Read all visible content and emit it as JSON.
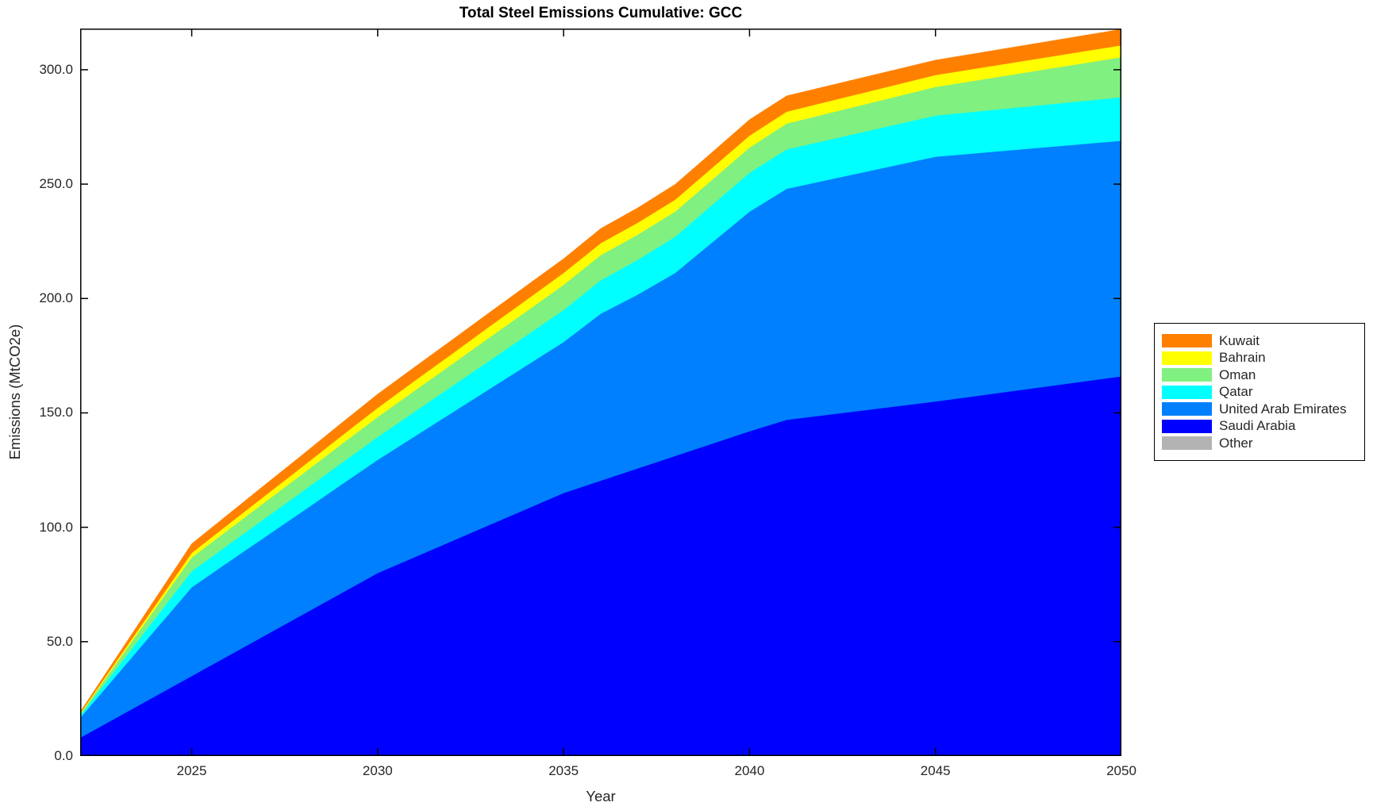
{
  "chart_data": {
    "type": "area",
    "stacked": true,
    "title": "Total Steel Emissions Cumulative: GCC",
    "xlabel": "Year",
    "ylabel": "Emissions (MtCO2e)",
    "x": [
      2022,
      2023,
      2024,
      2025,
      2026,
      2027,
      2028,
      2029,
      2030,
      2031,
      2032,
      2033,
      2034,
      2035,
      2036,
      2037,
      2038,
      2039,
      2040,
      2041,
      2042,
      2043,
      2044,
      2045,
      2046,
      2047,
      2048,
      2049,
      2050
    ],
    "xlim": [
      2022,
      2050
    ],
    "ylim": [
      0,
      318
    ],
    "xticks": [
      2025,
      2030,
      2035,
      2040,
      2045,
      2050
    ],
    "yticks": [
      0,
      50,
      100,
      150,
      200,
      250,
      300
    ],
    "grid": false,
    "legend_position": "right-outside",
    "legend_order_top_to_bottom": [
      "Kuwait",
      "Bahrain",
      "Oman",
      "Qatar",
      "United Arab Emirates",
      "Saudi Arabia",
      "Other"
    ],
    "series": [
      {
        "name": "Other",
        "color": "#B3B3B3",
        "values": [
          0,
          0,
          0,
          0,
          0,
          0,
          0,
          0,
          0,
          0,
          0,
          0,
          0,
          0,
          0,
          0,
          0,
          0,
          0,
          0,
          0,
          0,
          0,
          0,
          0,
          0,
          0,
          0,
          0
        ]
      },
      {
        "name": "Saudi Arabia",
        "color": "#0000FF",
        "values": [
          8,
          17,
          26,
          35,
          44,
          53,
          62,
          71,
          80,
          87,
          94,
          101,
          108,
          115,
          120.4,
          125.8,
          131.2,
          136.6,
          142,
          147,
          149,
          151,
          153,
          155,
          157.2,
          159.4,
          161.6,
          163.8,
          166
        ]
      },
      {
        "name": "United Arab Emirates",
        "color": "#0080FF",
        "values": [
          8.7,
          18.7,
          28.8,
          38.8,
          41,
          43.1,
          45.2,
          47.4,
          49.5,
          52.8,
          56.1,
          59.4,
          62.7,
          66,
          73,
          76,
          80,
          88,
          96,
          101,
          102.5,
          104,
          105.5,
          107,
          106.2,
          105.4,
          104.6,
          103.8,
          103
        ]
      },
      {
        "name": "Qatar",
        "color": "#00FFFF",
        "values": [
          1,
          3,
          5,
          7,
          7.6,
          8.2,
          8.8,
          9.4,
          10,
          10.8,
          11.6,
          12.4,
          13.2,
          14,
          14.6,
          15.2,
          15.8,
          16.4,
          17,
          17.2,
          17.4,
          17.6,
          17.8,
          18,
          18.2,
          18.4,
          18.6,
          18.8,
          19
        ]
      },
      {
        "name": "Oman",
        "color": "#80F080",
        "values": [
          0.7,
          2.5,
          4.2,
          6,
          6.5,
          7.1,
          7.6,
          8.2,
          8.7,
          9.2,
          9.6,
          10.1,
          10.5,
          11,
          11,
          11,
          11,
          11,
          11,
          11.3,
          11.6,
          11.9,
          12.2,
          12.5,
          13.5,
          14.5,
          15.5,
          16.5,
          17.5
        ]
      },
      {
        "name": "Bahrain",
        "color": "#FFFF00",
        "values": [
          0.3,
          0.9,
          1.4,
          2,
          2.4,
          2.8,
          3.2,
          3.6,
          4,
          4.3,
          4.5,
          4.8,
          5,
          5.2,
          5.2,
          5.2,
          5.2,
          5.2,
          5.2,
          5.2,
          5.2,
          5.2,
          5.2,
          5.2,
          5.2,
          5.2,
          5.2,
          5.2,
          5.2
        ]
      },
      {
        "name": "Kuwait",
        "color": "#FF8000",
        "values": [
          0.6,
          1.7,
          2.9,
          4,
          4.4,
          4.8,
          5.2,
          5.6,
          6,
          6,
          6.1,
          6.1,
          6.2,
          6.2,
          6.4,
          6.5,
          6.7,
          6.8,
          7,
          6.9,
          6.8,
          6.7,
          6.6,
          6.5,
          6.6,
          6.7,
          6.8,
          6.9,
          7
        ]
      }
    ],
    "ytick_labels": [
      "0.0",
      "50.0",
      "100.0",
      "150.0",
      "200.0",
      "250.0",
      "300.0"
    ],
    "xtick_labels": [
      "2025",
      "2030",
      "2035",
      "2040",
      "2045",
      "2050"
    ]
  },
  "colors": {
    "background": "#FFFFFF",
    "axis": "#000000",
    "tick_text": "#262626"
  }
}
